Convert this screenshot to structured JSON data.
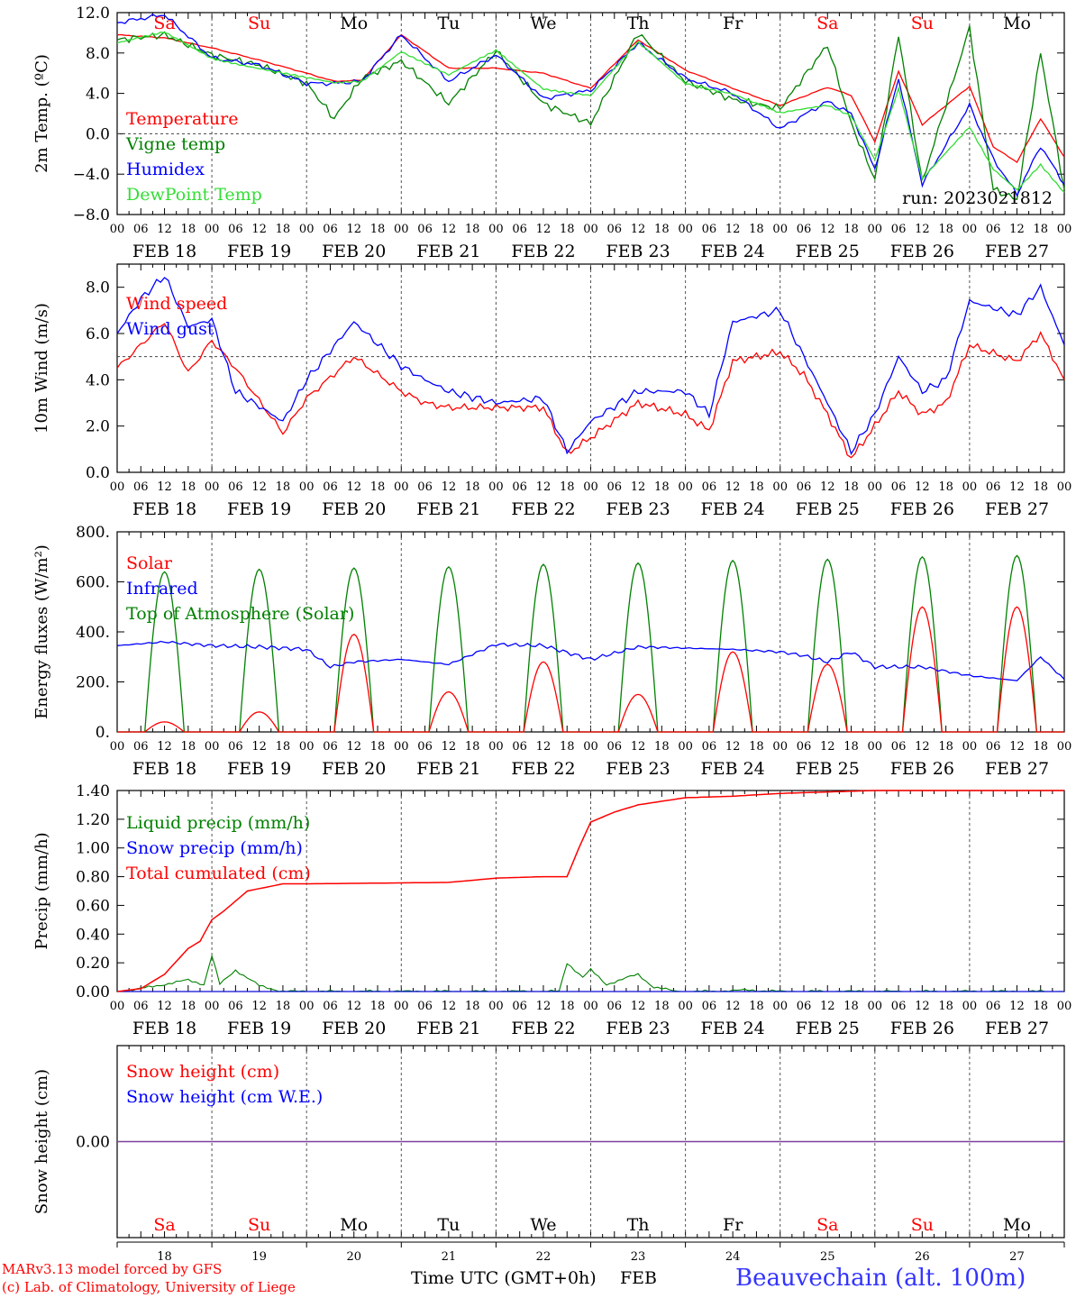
{
  "days": [
    "FEB 18",
    "FEB 19",
    "FEB 20",
    "FEB 21",
    "FEB 22",
    "FEB 23",
    "FEB 24",
    "FEB 25",
    "FEB 26",
    "FEB 27"
  ],
  "weekdays": [
    "Sa",
    "Su",
    "Mo",
    "Tu",
    "We",
    "Th",
    "Fr",
    "Sa",
    "Su",
    "Mo"
  ],
  "weekday_colors": [
    "#ff0000",
    "#ff0000",
    "#000000",
    "#000000",
    "#000000",
    "#000000",
    "#000000",
    "#ff0000",
    "#ff0000",
    "#000000"
  ],
  "day_numbers": [
    "18",
    "19",
    "20",
    "21",
    "22",
    "23",
    "24",
    "25",
    "26",
    "27"
  ],
  "hour_labels": [
    "00",
    "06",
    "12",
    "18"
  ],
  "last_hour_label": "00",
  "colors": {
    "red": "#ff0000",
    "green": "#008000",
    "blue": "#0000ff",
    "lightgreen": "#33dd33",
    "purple": "#7f3f9f"
  },
  "chart_data": [
    {
      "type": "line",
      "ylabel": "2m Temp. (ºC)",
      "ylim": [
        -8,
        12
      ],
      "yticks": [
        "12.0",
        "8.0",
        "4.0",
        "0.0",
        "−4.0",
        "−8.0"
      ],
      "ytick_values": [
        12,
        8,
        4,
        0,
        -4,
        -8
      ],
      "ref_line": 0,
      "annotation": "run: 2023021812",
      "x_unit": "hours since FEB 18 00 UTC",
      "series": [
        {
          "name": "Temperature",
          "color": "red",
          "x": [
            0,
            12,
            24,
            36,
            48,
            55,
            62,
            72,
            84,
            96,
            108,
            120,
            132,
            144,
            156,
            168,
            180,
            186,
            192,
            198,
            204,
            216,
            222,
            228,
            234,
            240
          ],
          "y": [
            9.8,
            9.5,
            8.5,
            7.3,
            6.0,
            5.2,
            5.3,
            9.8,
            6.5,
            6.5,
            6.0,
            4.5,
            9.3,
            6.3,
            4.5,
            2.8,
            4.6,
            3.8,
            -0.8,
            6.2,
            0.9,
            4.7,
            -1.3,
            -2.8,
            1.5,
            -2.3
          ]
        },
        {
          "name": "Vigne temp",
          "color": "green",
          "x": [
            0,
            12,
            24,
            36,
            48,
            55,
            62,
            72,
            84,
            96,
            108,
            120,
            132,
            144,
            156,
            168,
            180,
            186,
            192,
            198,
            204,
            216,
            222,
            228,
            234,
            240
          ],
          "y": [
            9.3,
            9.8,
            7.8,
            6.8,
            5.0,
            1.5,
            5.5,
            7.2,
            3.0,
            8.2,
            3.0,
            1.0,
            10.0,
            5.2,
            3.4,
            2.5,
            8.8,
            1.0,
            -4.5,
            9.8,
            -4.8,
            10.5,
            -5.5,
            -6.5,
            8.0,
            -5.5
          ]
        },
        {
          "name": "Humidex",
          "color": "blue",
          "x": [
            0,
            12,
            24,
            36,
            48,
            55,
            62,
            72,
            84,
            96,
            108,
            120,
            132,
            144,
            156,
            168,
            180,
            186,
            192,
            198,
            204,
            216,
            222,
            228,
            234,
            240
          ],
          "y": [
            11.0,
            11.8,
            7.5,
            6.8,
            5.0,
            5.0,
            5.2,
            9.8,
            5.2,
            7.8,
            3.5,
            4.3,
            9.0,
            5.5,
            4.0,
            0.5,
            3.2,
            2.0,
            -3.5,
            5.5,
            -5.0,
            2.8,
            -2.5,
            -6.0,
            -1.2,
            -5.0
          ]
        },
        {
          "name": "DewPoint Temp",
          "color": "lightgreen",
          "x": [
            0,
            12,
            24,
            36,
            48,
            55,
            62,
            72,
            84,
            96,
            108,
            120,
            132,
            144,
            156,
            168,
            180,
            186,
            192,
            198,
            204,
            216,
            222,
            228,
            234,
            240
          ],
          "y": [
            9.0,
            10.0,
            7.5,
            6.5,
            5.5,
            5.0,
            5.2,
            8.2,
            5.8,
            8.2,
            4.5,
            3.8,
            9.0,
            5.0,
            4.0,
            2.0,
            2.8,
            1.8,
            -2.5,
            4.5,
            -4.5,
            0.6,
            -3.5,
            -5.5,
            -3.0,
            -5.8
          ]
        }
      ]
    },
    {
      "type": "line",
      "ylabel": "10m Wind (m/s)",
      "ylim": [
        0,
        9
      ],
      "yticks": [
        "8.0",
        "6.0",
        "4.0",
        "2.0",
        "0.0"
      ],
      "ytick_values": [
        8,
        6,
        4,
        2,
        0
      ],
      "ref_line": 5,
      "series": [
        {
          "name": "Wind speed",
          "color": "red",
          "x": [
            0,
            12,
            18,
            24,
            30,
            42,
            48,
            60,
            72,
            78,
            84,
            96,
            108,
            114,
            120,
            132,
            144,
            150,
            156,
            168,
            174,
            180,
            186,
            192,
            198,
            204,
            210,
            216,
            228,
            234,
            240
          ],
          "y": [
            4.5,
            6.5,
            4.3,
            5.7,
            4.5,
            1.7,
            3.2,
            5.0,
            3.5,
            3.0,
            2.8,
            2.8,
            2.8,
            0.8,
            1.5,
            3.0,
            2.5,
            1.8,
            4.8,
            5.2,
            4.2,
            2.5,
            0.6,
            2.0,
            3.5,
            2.5,
            3.0,
            5.5,
            4.8,
            6.0,
            4.0
          ]
        },
        {
          "name": "Wind gust",
          "color": "blue",
          "x": [
            0,
            6,
            12,
            18,
            24,
            30,
            42,
            48,
            60,
            72,
            78,
            84,
            96,
            108,
            114,
            120,
            132,
            144,
            150,
            156,
            168,
            174,
            180,
            186,
            192,
            198,
            204,
            210,
            216,
            228,
            234,
            240
          ],
          "y": [
            6.0,
            7.5,
            8.5,
            6.3,
            6.6,
            3.5,
            2.2,
            4.0,
            6.5,
            4.6,
            4.0,
            3.5,
            3.0,
            3.2,
            0.9,
            2.2,
            3.5,
            3.5,
            2.5,
            6.5,
            7.0,
            5.0,
            3.0,
            0.9,
            2.5,
            5.0,
            3.5,
            4.0,
            7.4,
            6.8,
            8.0,
            5.5
          ]
        }
      ]
    },
    {
      "type": "line",
      "ylabel": "Energy fluxes (W/m²)",
      "ylim": [
        0,
        800
      ],
      "yticks": [
        "800.",
        "600.",
        "400.",
        "200.",
        "0."
      ],
      "ytick_values": [
        800,
        600,
        400,
        200,
        0
      ],
      "series": [
        {
          "name": "Solar",
          "color": "red",
          "daily_peak_time": 12,
          "daily_half_width": 5,
          "peaks": [
            40,
            80,
            390,
            160,
            280,
            150,
            320,
            270,
            500,
            500
          ]
        },
        {
          "name": "Infrared",
          "color": "blue",
          "x": [
            0,
            12,
            24,
            36,
            48,
            54,
            60,
            72,
            84,
            96,
            108,
            120,
            132,
            144,
            156,
            168,
            174,
            180,
            186,
            192,
            204,
            216,
            228,
            234,
            240
          ],
          "y": [
            345,
            360,
            345,
            340,
            330,
            260,
            280,
            290,
            270,
            350,
            345,
            290,
            340,
            335,
            330,
            320,
            305,
            280,
            320,
            260,
            260,
            225,
            205,
            300,
            210
          ]
        },
        {
          "name": "Top of Atmosphere (Solar)",
          "color": "green",
          "daily_peak_time": 12,
          "daily_half_width": 5,
          "peaks": [
            640,
            650,
            655,
            660,
            670,
            675,
            685,
            690,
            700,
            705
          ]
        }
      ]
    },
    {
      "type": "line",
      "ylabel": "Precip (mm/h)",
      "ylim": [
        0,
        1.4
      ],
      "yticks": [
        "1.40",
        "1.20",
        "1.00",
        "0.80",
        "0.60",
        "0.40",
        "0.20",
        "0.00"
      ],
      "ytick_values": [
        1.4,
        1.2,
        1.0,
        0.8,
        0.6,
        0.4,
        0.2,
        0.0
      ],
      "series": [
        {
          "name": "Liquid precip (mm/h)",
          "color": "green",
          "x": [
            0,
            6,
            12,
            18,
            22,
            24,
            26,
            30,
            36,
            42,
            48,
            96,
            108,
            112,
            114,
            118,
            120,
            124,
            132,
            136,
            142,
            150,
            160,
            168,
            240
          ],
          "y": [
            0,
            0.02,
            0.05,
            0.08,
            0.05,
            0.25,
            0.05,
            0.15,
            0.04,
            0,
            0,
            0,
            0,
            0,
            0.2,
            0.1,
            0.15,
            0.05,
            0.12,
            0.03,
            0,
            0,
            0.01,
            0,
            0
          ]
        },
        {
          "name": "Snow precip (mm/h)",
          "color": "blue",
          "x": [
            0,
            240
          ],
          "y": [
            0,
            0
          ]
        },
        {
          "name": "Total cumulated (cm)",
          "color": "red",
          "x": [
            0,
            6,
            12,
            18,
            21,
            24,
            27,
            33,
            42,
            48,
            84,
            96,
            108,
            112,
            114,
            117,
            120,
            126,
            132,
            144,
            156,
            168,
            192,
            240
          ],
          "y": [
            0,
            0.02,
            0.12,
            0.3,
            0.35,
            0.5,
            0.56,
            0.7,
            0.75,
            0.75,
            0.76,
            0.79,
            0.8,
            0.8,
            0.8,
            1.0,
            1.18,
            1.25,
            1.3,
            1.35,
            1.36,
            1.38,
            1.4,
            1.4
          ]
        }
      ]
    },
    {
      "type": "line",
      "ylabel": "Snow height (cm)",
      "ylim": [
        -1,
        1
      ],
      "yticks": [
        "0.00"
      ],
      "ytick_values": [
        0
      ],
      "series": [
        {
          "name": "Snow height (cm)",
          "color": "red",
          "x": [
            0,
            240
          ],
          "y": [
            0,
            0
          ]
        },
        {
          "name": "Snow height (cm W.E.)",
          "color": "blue",
          "x": [
            0,
            240
          ],
          "y": [
            0,
            0
          ]
        }
      ]
    }
  ],
  "footer": {
    "model": "MARv3.13 model forced by GFS",
    "copyright": "(c) Lab. of Climatology, University of Liege",
    "axis_title": "Time UTC (GMT+0h)",
    "month": "FEB",
    "station": "Beauvechain (alt. 100m)"
  }
}
